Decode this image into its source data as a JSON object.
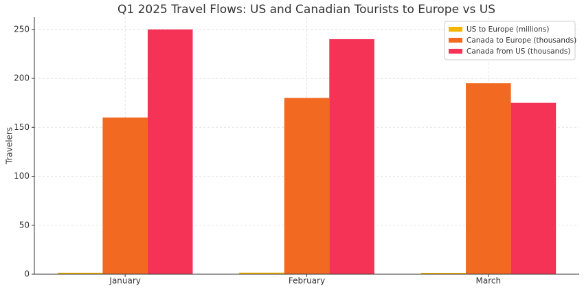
{
  "chart_data": {
    "type": "bar",
    "title": "Q1 2025 Travel Flows: US and Canadian Tourists to Europe vs US",
    "y_label": "Travelers",
    "categories": [
      "January",
      "February",
      "March"
    ],
    "series": [
      {
        "name": "US to Europe (millions)",
        "color": "#f5b400",
        "values": [
          1.5,
          1.6,
          1.4
        ]
      },
      {
        "name": "Canada to Europe (thousands)",
        "color": "#f26a22",
        "values": [
          160,
          180,
          195
        ]
      },
      {
        "name": "Canada from US (thousands)",
        "color": "#f53356",
        "values": [
          250,
          240,
          175
        ]
      }
    ],
    "ylim": [
      0,
      262.5
    ],
    "yticks": [
      0,
      50,
      100,
      150,
      200,
      250
    ],
    "grid": true,
    "legend": "upper right"
  }
}
